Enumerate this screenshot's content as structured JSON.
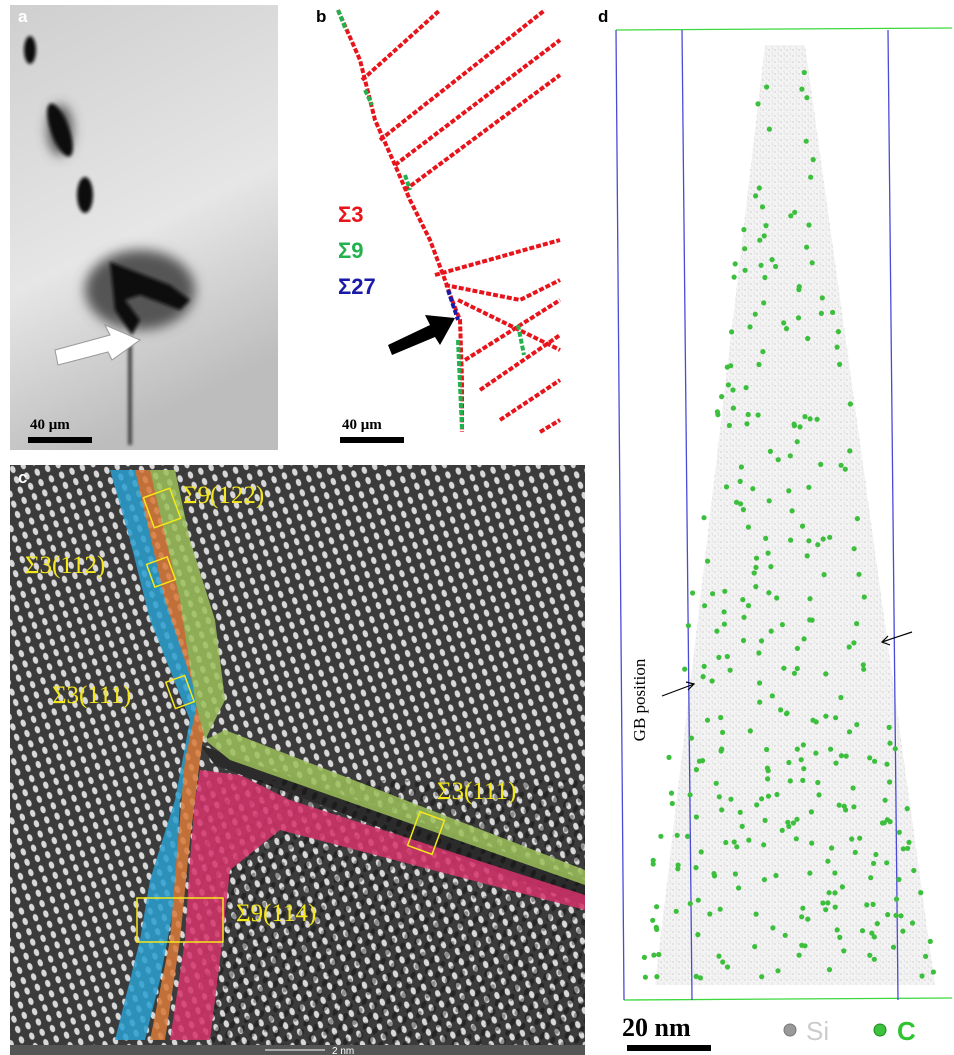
{
  "panels": {
    "a": {
      "label": "a",
      "scale_bar": "40 μm"
    },
    "b": {
      "label": "b",
      "legend": [
        "Σ3",
        "Σ9",
        "Σ27"
      ],
      "scale_bar": "40 μm"
    },
    "c": {
      "label": "c",
      "annotations": [
        "Σ9(122)",
        "Σ3(112)",
        "Σ3(111)",
        "Σ3(111)",
        "Σ9(114)"
      ],
      "scale_bar": "2 nm"
    },
    "d": {
      "label": "d",
      "annotation": "GB position",
      "scale_bar": "20 nm",
      "legend": [
        "Si",
        "C"
      ]
    }
  }
}
